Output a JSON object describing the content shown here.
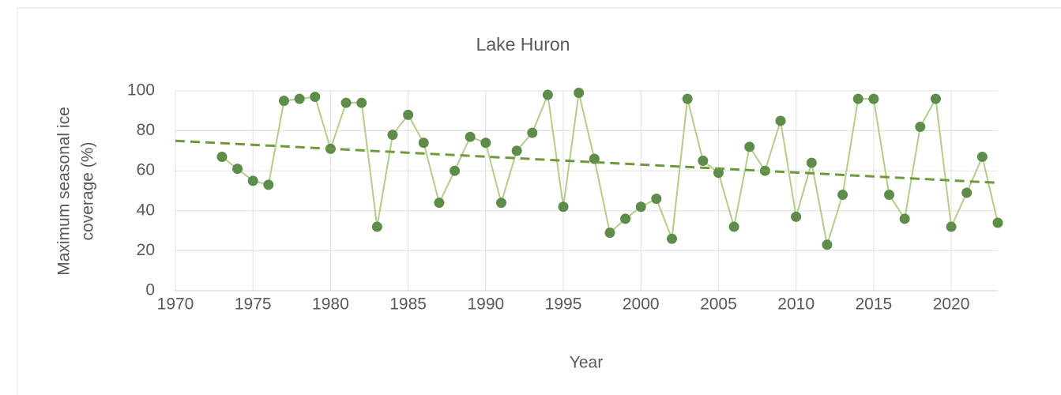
{
  "chart_data": {
    "type": "line",
    "title": "Lake Huron",
    "ylabel": [
      "Maximum seasonal ice",
      "coverage (%)"
    ],
    "xlabel": "Year",
    "xlim": [
      1970,
      2023
    ],
    "xticks": [
      1970,
      1975,
      1980,
      1985,
      1990,
      1995,
      2000,
      2005,
      2010,
      2015,
      2020
    ],
    "ylim": [
      0,
      100
    ],
    "yticks": [
      0,
      20,
      40,
      60,
      80,
      100
    ],
    "grid": true,
    "series": [
      {
        "line_color": "#b4cc8c",
        "color": "#5e8c4a",
        "x": [
          1973,
          1974,
          1975,
          1976,
          1977,
          1978,
          1979,
          1980,
          1981,
          1982,
          1983,
          1984,
          1985,
          1986,
          1987,
          1988,
          1989,
          1990,
          1991,
          1992,
          1993,
          1994,
          1995,
          1996,
          1997,
          1998,
          1999,
          2000,
          2001,
          2002,
          2003,
          2004,
          2005,
          2006,
          2007,
          2008,
          2009,
          2010,
          2011,
          2012,
          2013,
          2014,
          2015,
          2016,
          2017,
          2018,
          2019,
          2020,
          2021,
          2022,
          2023
        ],
        "values": [
          67,
          61,
          55,
          53,
          95,
          96,
          97,
          71,
          94,
          94,
          32,
          78,
          88,
          74,
          44,
          60,
          77,
          74,
          44,
          70,
          79,
          98,
          42,
          99,
          66,
          29,
          36,
          42,
          46,
          26,
          96,
          65,
          59,
          32,
          72,
          60,
          85,
          37,
          64,
          23,
          48,
          96,
          96,
          48,
          36,
          82,
          96,
          32,
          49,
          67,
          34
        ]
      },
      {
        "color": "#6f9a3c",
        "dashed": true,
        "x": [
          1970,
          2023
        ],
        "values": [
          75,
          54
        ]
      }
    ]
  }
}
